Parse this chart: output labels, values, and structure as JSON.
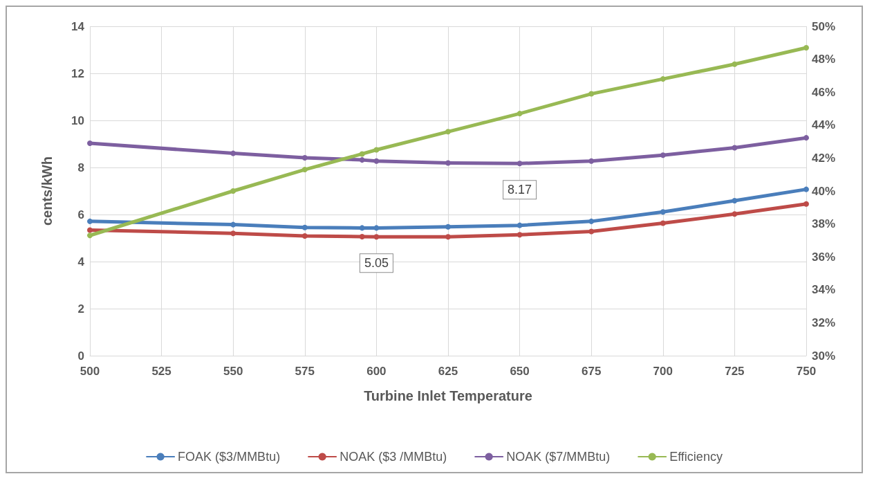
{
  "chart_data": {
    "type": "line",
    "xlabel": "Turbine Inlet Temperature",
    "ylabel": "cents/kWh",
    "xlim": [
      500,
      750
    ],
    "xticks": [
      500,
      525,
      550,
      575,
      600,
      625,
      650,
      675,
      700,
      725,
      750
    ],
    "ylim": [
      0,
      14
    ],
    "yticks": [
      0,
      2,
      4,
      6,
      8,
      10,
      12,
      14
    ],
    "y2lim": [
      30,
      50
    ],
    "y2ticks": [
      {
        "value": 30,
        "label": "30%"
      },
      {
        "value": 32,
        "label": "32%"
      },
      {
        "value": 34,
        "label": "34%"
      },
      {
        "value": 36,
        "label": "36%"
      },
      {
        "value": 38,
        "label": "38%"
      },
      {
        "value": 40,
        "label": "40%"
      },
      {
        "value": 42,
        "label": "42%"
      },
      {
        "value": 44,
        "label": "44%"
      },
      {
        "value": 46,
        "label": "46%"
      },
      {
        "value": 48,
        "label": "48%"
      },
      {
        "value": 50,
        "label": "50%"
      }
    ],
    "x": [
      500,
      550,
      575,
      595,
      600,
      625,
      650,
      675,
      700,
      725,
      750
    ],
    "series": [
      {
        "name": "FOAK ($3/MMBtu)",
        "color": "#4a7ebb",
        "values": [
          5.71,
          5.57,
          5.45,
          5.43,
          5.43,
          5.48,
          5.54,
          5.71,
          6.11,
          6.59,
          7.07
        ]
      },
      {
        "name": "NOAK ($3 /MMBtu)",
        "color": "#be4b48",
        "values": [
          5.34,
          5.2,
          5.09,
          5.06,
          5.05,
          5.05,
          5.14,
          5.28,
          5.63,
          6.02,
          6.45
        ]
      },
      {
        "name": "NOAK ($7/MMBtu)",
        "color": "#7d5fa0",
        "values": [
          9.03,
          8.6,
          8.41,
          8.32,
          8.27,
          8.19,
          8.17,
          8.27,
          8.52,
          8.84,
          9.26
        ]
      },
      {
        "name": "Efficiency",
        "color": "#98b954",
        "axis": "y2",
        "values": [
          37.3,
          40.0,
          41.3,
          42.25,
          42.5,
          43.6,
          44.7,
          45.9,
          46.8,
          47.7,
          48.7
        ]
      }
    ],
    "annotations": [
      {
        "text": "5.05",
        "x": 600,
        "y": 5.05
      },
      {
        "text": "8.17",
        "x": 650,
        "y": 8.17
      }
    ],
    "grid": true,
    "legend": "bottom",
    "marker": "circle",
    "line_style": "solid"
  }
}
